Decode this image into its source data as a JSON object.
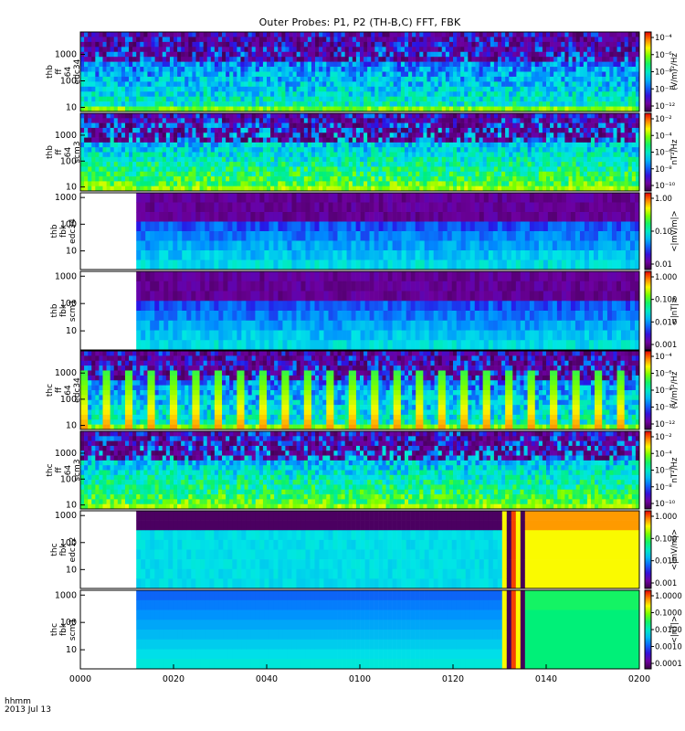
{
  "title": "Outer Probes: P1, P2 (TH-B,C) FFT, FBK",
  "corner": {
    "line1": "hhmm",
    "line2": "2013 Jul 13"
  },
  "chart_data": {
    "type": "heatmap",
    "x_ticks": [
      "0000",
      "0020",
      "0040",
      "0100",
      "0120",
      "0140",
      "0200"
    ],
    "x_range": [
      "00:00",
      "02:00"
    ],
    "panels": [
      {
        "label": [
          "thb",
          "ff",
          "64",
          "edc34"
        ],
        "yscale": "log",
        "yticks": [
          "10",
          "100",
          "1000"
        ],
        "ylim": [
          7,
          7000
        ],
        "cb_label": "(V/m)²/Hz",
        "cb_ticks": [
          "10⁻⁴",
          "10⁻⁶",
          "10⁻⁸",
          "10⁻¹⁰",
          "10⁻¹²"
        ],
        "cb_range": [
          "1e-12",
          "1e-4"
        ],
        "data_start": "00:00"
      },
      {
        "label": [
          "thb",
          "ff",
          "64",
          "scm3"
        ],
        "yscale": "log",
        "yticks": [
          "10",
          "100",
          "1000"
        ],
        "ylim": [
          7,
          7000
        ],
        "cb_label": "nT²/Hz",
        "cb_ticks": [
          "10⁻²",
          "10⁻⁴",
          "10⁻⁶",
          "10⁻⁸",
          "10⁻¹⁰"
        ],
        "cb_range": [
          "1e-10",
          "1e-2"
        ],
        "data_start": "00:00"
      },
      {
        "label": [
          "thb",
          "fbk",
          "edc34"
        ],
        "yscale": "log",
        "yticks": [
          "10",
          "100",
          "1000"
        ],
        "ylim": [
          2,
          1500
        ],
        "cb_label": "<|mV/m|>",
        "cb_ticks": [
          "1.00",
          "0.10",
          "0.01"
        ],
        "cb_range": [
          "0.005",
          "1.5"
        ],
        "data_start": "00:12"
      },
      {
        "label": [
          "thb",
          "fbk",
          "scm1"
        ],
        "yscale": "log",
        "yticks": [
          "10",
          "100",
          "1000"
        ],
        "ylim": [
          2,
          1500
        ],
        "cb_label": "<|nT|>",
        "cb_ticks": [
          "1.000",
          "0.100",
          "0.010",
          "0.001"
        ],
        "cb_range": [
          "0.0007",
          "1.5"
        ],
        "data_start": "00:12"
      },
      {
        "label": [
          "thc",
          "ff",
          "64",
          "edc34"
        ],
        "yscale": "log",
        "yticks": [
          "10",
          "100",
          "1000"
        ],
        "ylim": [
          7,
          7000
        ],
        "cb_label": "(V/m)²/Hz",
        "cb_ticks": [
          "10⁻⁴",
          "10⁻⁶",
          "10⁻⁸",
          "10⁻¹⁰",
          "10⁻¹²"
        ],
        "cb_range": [
          "1e-12",
          "1e-4"
        ],
        "data_start": "00:00"
      },
      {
        "label": [
          "thc",
          "ff",
          "64",
          "scm3"
        ],
        "yscale": "log",
        "yticks": [
          "10",
          "100",
          "1000"
        ],
        "ylim": [
          7,
          7000
        ],
        "cb_label": "nT²/Hz",
        "cb_ticks": [
          "10⁻²",
          "10⁻⁴",
          "10⁻⁶",
          "10⁻⁸",
          "10⁻¹⁰"
        ],
        "cb_range": [
          "1e-10",
          "1e-2"
        ],
        "data_start": "00:00"
      },
      {
        "label": [
          "thc",
          "fbk",
          "edc12"
        ],
        "yscale": "log",
        "yticks": [
          "10",
          "100",
          "1000"
        ],
        "ylim": [
          2,
          1500
        ],
        "cb_label": "<|mV/m|>",
        "cb_ticks": [
          "1.000",
          "0.100",
          "0.010",
          "0.001"
        ],
        "cb_range": [
          "0.0007",
          "1.5"
        ],
        "data_start": "00:12"
      },
      {
        "label": [
          "thc",
          "fbk",
          "scm1"
        ],
        "yscale": "log",
        "yticks": [
          "10",
          "100",
          "1000"
        ],
        "ylim": [
          2,
          1500
        ],
        "cb_label": "<|nT|>",
        "cb_ticks": [
          "1.0000",
          "0.1000",
          "0.0100",
          "0.0010",
          "0.0001"
        ],
        "cb_range": [
          "0.00005",
          "1.5"
        ],
        "data_start": "00:12"
      }
    ]
  }
}
